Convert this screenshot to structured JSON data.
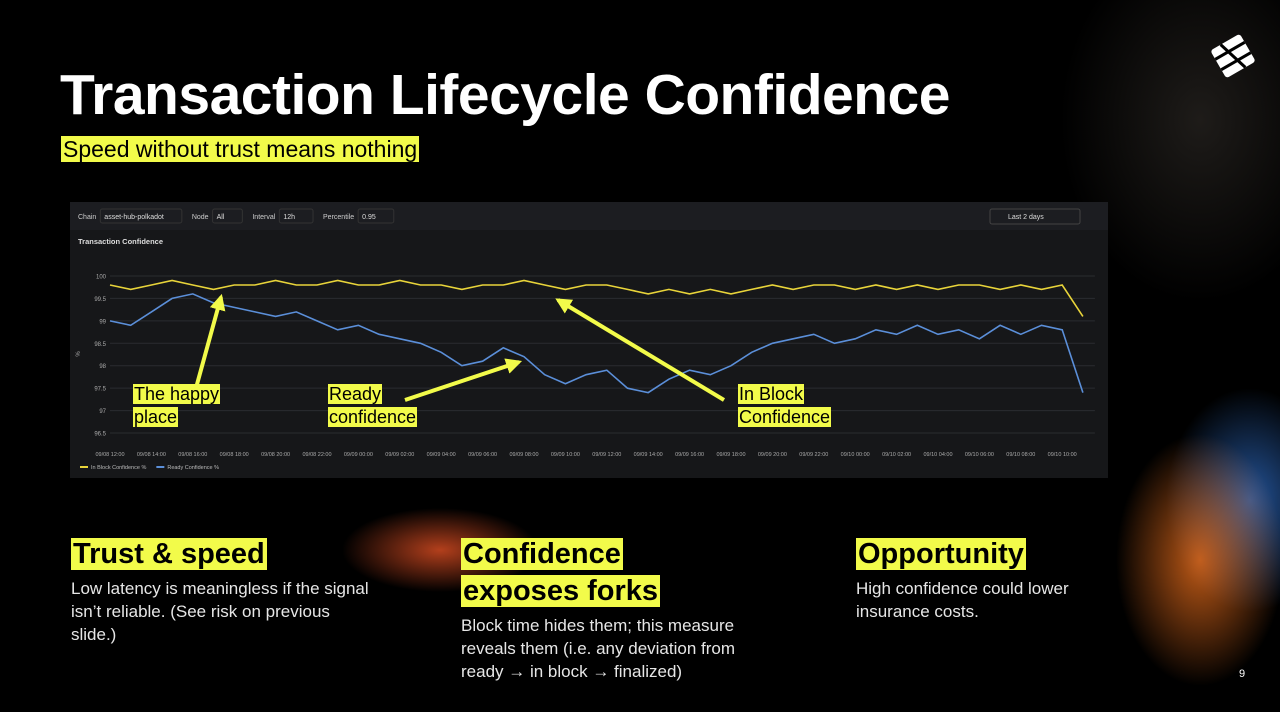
{
  "header": {
    "title": "Transaction Lifecycle Confidence",
    "subtitle": "Speed without trust means nothing"
  },
  "dashboard": {
    "filters": [
      {
        "label": "Chain",
        "value": "asset-hub-polkadot"
      },
      {
        "label": "Node",
        "value": "All"
      },
      {
        "label": "Interval",
        "value": "12h"
      },
      {
        "label": "Percentile",
        "value": "0.95"
      }
    ],
    "time_range": "Last 2 days",
    "panel_title": "Transaction Confidence"
  },
  "chart_data": {
    "type": "line",
    "y_label": "%",
    "categories": [
      "09/08 12:00",
      null,
      "09/08 14:00",
      null,
      "09/08 16:00",
      null,
      "09/08 18:00",
      null,
      "09/08 20:00",
      null,
      "09/08 22:00",
      null,
      "09/09 00:00",
      null,
      "09/09 02:00",
      null,
      "09/09 04:00",
      null,
      "09/09 06:00",
      null,
      "09/09 08:00",
      null,
      "09/09 10:00",
      null,
      "09/09 12:00",
      null,
      "09/09 14:00",
      null,
      "09/09 16:00",
      null,
      "09/09 18:00",
      null,
      "09/09 20:00",
      null,
      "09/09 22:00",
      null,
      "09/10 00:00",
      null,
      "09/10 02:00",
      null,
      "09/10 04:00",
      null,
      "09/10 06:00",
      null,
      "09/10 08:00",
      null,
      "09/10 10:00",
      null
    ],
    "series": [
      {
        "name": "In Block Confidence %",
        "color": "#e8d43a",
        "values": [
          99.8,
          99.7,
          99.8,
          99.9,
          99.8,
          99.7,
          99.8,
          99.8,
          99.9,
          99.8,
          99.8,
          99.9,
          99.8,
          99.8,
          99.9,
          99.8,
          99.8,
          99.7,
          99.8,
          99.8,
          99.9,
          99.8,
          99.7,
          99.8,
          99.8,
          99.7,
          99.6,
          99.7,
          99.6,
          99.7,
          99.6,
          99.7,
          99.8,
          99.7,
          99.8,
          99.8,
          99.7,
          99.8,
          99.7,
          99.8,
          99.7,
          99.8,
          99.8,
          99.7,
          99.8,
          99.7,
          99.8,
          99.1
        ]
      },
      {
        "name": "Ready Confidence %",
        "color": "#5b8fd9",
        "values": [
          99.0,
          98.9,
          99.2,
          99.5,
          99.6,
          99.4,
          99.3,
          99.2,
          99.1,
          99.2,
          99.0,
          98.8,
          98.9,
          98.7,
          98.6,
          98.5,
          98.3,
          98.0,
          98.1,
          98.4,
          98.2,
          97.8,
          97.6,
          97.8,
          97.9,
          97.5,
          97.4,
          97.7,
          97.9,
          97.8,
          98.0,
          98.3,
          98.5,
          98.6,
          98.7,
          98.5,
          98.6,
          98.8,
          98.7,
          98.9,
          98.7,
          98.8,
          98.6,
          98.9,
          98.7,
          98.9,
          98.8,
          97.4
        ]
      }
    ],
    "ylim": [
      96.3,
      100.1
    ],
    "yticks": [
      96.5,
      97,
      97.5,
      98,
      98.5,
      99,
      99.5,
      100
    ],
    "grid": true,
    "legend": "bottom-left"
  },
  "annotations": [
    {
      "text": "The happy\nplace"
    },
    {
      "text": "Ready\nconfidence"
    },
    {
      "text": "In Block\nConfidence"
    }
  ],
  "columns": [
    {
      "heading": "Trust & speed",
      "body": "Low latency is meaningless if the signal isn’t reliable. (See risk on previous slide.)"
    },
    {
      "heading": "Confidence exposes forks",
      "body": "Block time hides them; this measure reveals them (i.e. any deviation from ready → in block → finalized)"
    },
    {
      "heading": "Opportunity",
      "body": "High confidence could lower insurance costs."
    }
  ],
  "page_number": "9"
}
